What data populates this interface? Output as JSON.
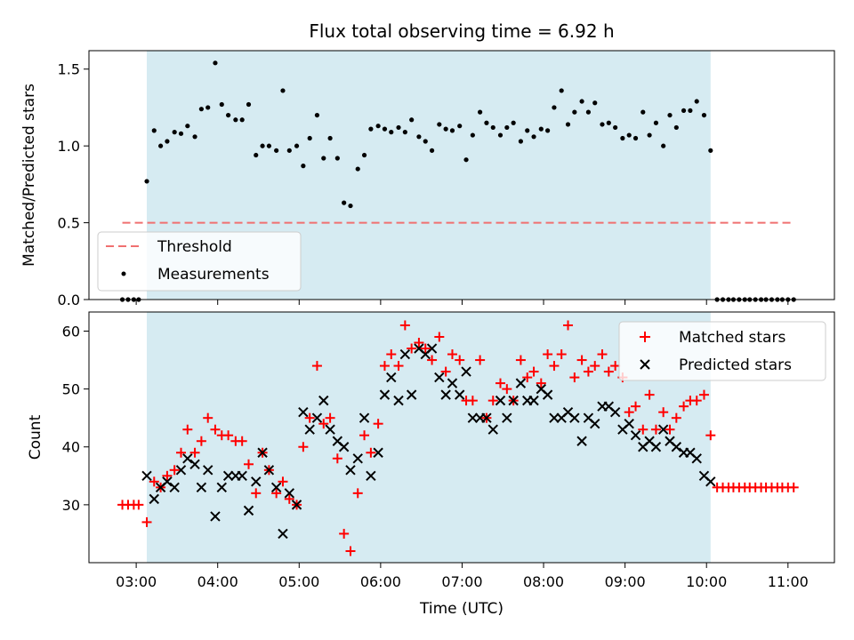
{
  "title": "Flux total observing time = 6.92 h",
  "colors": {
    "span": "#add8e6",
    "threshold": "#f07070",
    "matched": "#ff0000",
    "predicted": "#000000",
    "measure": "#000000"
  },
  "x_ticks": [
    "03:00",
    "04:00",
    "05:00",
    "06:00",
    "07:00",
    "08:00",
    "09:00",
    "10:00",
    "11:00"
  ],
  "xlabel": "Time (UTC)",
  "chart_data": [
    {
      "type": "scatter",
      "ylabel": "Matched/Predicted stars",
      "xlim": [
        2.42,
        11.57
      ],
      "ylim": [
        0,
        1.62
      ],
      "y_ticks": [
        "0.0",
        "0.5",
        "1.0",
        "1.5"
      ],
      "y_tick_values": [
        0,
        0.5,
        1.0,
        1.5
      ],
      "shaded_span": [
        3.13,
        10.05
      ],
      "threshold": {
        "name": "Threshold",
        "value": 0.5,
        "x_range": [
          2.83,
          11.07
        ]
      },
      "legend": {
        "position": "lower-left",
        "entries": [
          "Threshold",
          "Measurements"
        ]
      },
      "series": [
        {
          "name": "Measurements",
          "x": [
            2.83,
            2.9,
            2.97,
            3.03,
            3.13,
            3.22,
            3.3,
            3.38,
            3.47,
            3.55,
            3.63,
            3.72,
            3.8,
            3.88,
            3.97,
            4.05,
            4.13,
            4.22,
            4.3,
            4.38,
            4.47,
            4.55,
            4.63,
            4.72,
            4.8,
            4.88,
            4.97,
            5.05,
            5.13,
            5.22,
            5.3,
            5.38,
            5.47,
            5.55,
            5.63,
            5.72,
            5.8,
            5.88,
            5.97,
            6.05,
            6.13,
            6.22,
            6.3,
            6.38,
            6.47,
            6.55,
            6.63,
            6.72,
            6.8,
            6.88,
            6.97,
            7.05,
            7.13,
            7.22,
            7.3,
            7.38,
            7.47,
            7.55,
            7.63,
            7.72,
            7.8,
            7.88,
            7.97,
            8.05,
            8.13,
            8.22,
            8.3,
            8.38,
            8.47,
            8.55,
            8.63,
            8.72,
            8.8,
            8.88,
            8.97,
            9.05,
            9.13,
            9.22,
            9.3,
            9.38,
            9.47,
            9.55,
            9.63,
            9.72,
            9.8,
            9.88,
            9.97,
            10.05,
            10.13,
            10.2,
            10.27,
            10.33,
            10.4,
            10.47,
            10.53,
            10.6,
            10.67,
            10.73,
            10.8,
            10.87,
            10.93,
            11.0,
            11.07
          ],
          "y": [
            0,
            0,
            0,
            0,
            0.77,
            1.1,
            1.0,
            1.03,
            1.09,
            1.08,
            1.13,
            1.06,
            1.24,
            1.25,
            1.54,
            1.27,
            1.2,
            1.17,
            1.17,
            1.27,
            0.94,
            1.0,
            1.0,
            0.97,
            1.36,
            0.97,
            1.0,
            0.87,
            1.05,
            1.2,
            0.92,
            1.05,
            0.92,
            0.63,
            0.61,
            0.85,
            0.94,
            1.11,
            1.13,
            1.11,
            1.09,
            1.12,
            1.09,
            1.17,
            1.06,
            1.03,
            0.97,
            1.14,
            1.11,
            1.1,
            1.13,
            0.91,
            1.07,
            1.22,
            1.15,
            1.12,
            1.07,
            1.12,
            1.15,
            1.03,
            1.1,
            1.06,
            1.11,
            1.1,
            1.25,
            1.36,
            1.14,
            1.22,
            1.29,
            1.22,
            1.28,
            1.14,
            1.15,
            1.12,
            1.05,
            1.07,
            1.05,
            1.22,
            1.07,
            1.15,
            1.0,
            1.2,
            1.12,
            1.23,
            1.23,
            1.29,
            1.2,
            0.97,
            0,
            0,
            0,
            0,
            0,
            0,
            0,
            0,
            0,
            0,
            0,
            0,
            0,
            0,
            0
          ]
        }
      ]
    },
    {
      "type": "scatter",
      "ylabel": "Count",
      "xlim": [
        2.42,
        11.57
      ],
      "ylim": [
        20,
        63.3
      ],
      "y_ticks": [
        "30",
        "40",
        "50",
        "60"
      ],
      "y_tick_values": [
        30,
        40,
        50,
        60
      ],
      "shaded_span": [
        3.13,
        10.05
      ],
      "legend": {
        "position": "top-right",
        "entries": [
          "Matched stars",
          "Predicted stars"
        ]
      },
      "series": [
        {
          "name": "Matched stars",
          "marker": "plus",
          "x": [
            2.83,
            2.9,
            2.97,
            3.03,
            3.13,
            3.22,
            3.3,
            3.38,
            3.47,
            3.55,
            3.63,
            3.72,
            3.8,
            3.88,
            3.97,
            4.05,
            4.13,
            4.22,
            4.3,
            4.38,
            4.47,
            4.55,
            4.63,
            4.72,
            4.8,
            4.88,
            4.97,
            5.05,
            5.13,
            5.22,
            5.3,
            5.38,
            5.47,
            5.55,
            5.63,
            5.72,
            5.8,
            5.88,
            5.97,
            6.05,
            6.13,
            6.22,
            6.3,
            6.38,
            6.47,
            6.55,
            6.63,
            6.72,
            6.8,
            6.88,
            6.97,
            7.05,
            7.13,
            7.22,
            7.3,
            7.38,
            7.47,
            7.55,
            7.63,
            7.72,
            7.8,
            7.88,
            7.97,
            8.05,
            8.13,
            8.22,
            8.3,
            8.38,
            8.47,
            8.55,
            8.63,
            8.72,
            8.8,
            8.88,
            8.97,
            9.05,
            9.13,
            9.22,
            9.3,
            9.38,
            9.47,
            9.55,
            9.63,
            9.72,
            9.8,
            9.88,
            9.97,
            10.05,
            10.13,
            10.2,
            10.27,
            10.33,
            10.4,
            10.47,
            10.53,
            10.6,
            10.67,
            10.73,
            10.8,
            10.87,
            10.93,
            11.0,
            11.07
          ],
          "y": [
            30,
            30,
            30,
            30,
            27,
            34,
            33,
            35,
            36,
            39,
            43,
            39,
            41,
            45,
            43,
            42,
            42,
            41,
            41,
            37,
            32,
            39,
            36,
            32,
            34,
            31,
            30,
            40,
            45,
            54,
            44,
            45,
            38,
            25,
            22,
            32,
            42,
            39,
            44,
            54,
            56,
            54,
            61,
            57,
            58,
            57,
            55,
            59,
            53,
            56,
            55,
            48,
            48,
            55,
            45,
            48,
            51,
            50,
            48,
            55,
            52,
            53,
            51,
            56,
            54,
            56,
            61,
            52,
            55,
            53,
            54,
            56,
            53,
            54,
            52,
            46,
            47,
            43,
            49,
            43,
            46,
            43,
            45,
            47,
            48,
            48,
            49,
            42,
            33,
            33,
            33,
            33,
            33,
            33,
            33,
            33,
            33,
            33,
            33,
            33,
            33,
            33,
            33
          ]
        },
        {
          "name": "Predicted stars",
          "marker": "x",
          "x": [
            3.13,
            3.22,
            3.3,
            3.38,
            3.47,
            3.55,
            3.63,
            3.72,
            3.8,
            3.88,
            3.97,
            4.05,
            4.13,
            4.22,
            4.3,
            4.38,
            4.47,
            4.55,
            4.63,
            4.72,
            4.8,
            4.88,
            4.97,
            5.05,
            5.13,
            5.22,
            5.3,
            5.38,
            5.47,
            5.55,
            5.63,
            5.72,
            5.8,
            5.88,
            5.97,
            6.05,
            6.13,
            6.22,
            6.3,
            6.38,
            6.47,
            6.55,
            6.63,
            6.72,
            6.8,
            6.88,
            6.97,
            7.05,
            7.13,
            7.22,
            7.3,
            7.38,
            7.47,
            7.55,
            7.63,
            7.72,
            7.8,
            7.88,
            7.97,
            8.05,
            8.13,
            8.22,
            8.3,
            8.38,
            8.47,
            8.55,
            8.63,
            8.72,
            8.8,
            8.88,
            8.97,
            9.05,
            9.13,
            9.22,
            9.3,
            9.38,
            9.47,
            9.55,
            9.63,
            9.72,
            9.8,
            9.88,
            9.97,
            10.05
          ],
          "y": [
            35,
            31,
            33,
            34,
            33,
            36,
            38,
            37,
            33,
            36,
            28,
            33,
            35,
            35,
            35,
            29,
            34,
            39,
            36,
            33,
            25,
            32,
            30,
            46,
            43,
            45,
            48,
            43,
            41,
            40,
            36,
            38,
            45,
            35,
            39,
            49,
            52,
            48,
            56,
            49,
            57,
            56,
            57,
            52,
            49,
            51,
            49,
            53,
            45,
            45,
            45,
            43,
            48,
            45,
            48,
            51,
            48,
            48,
            50,
            49,
            45,
            45,
            46,
            45,
            41,
            45,
            44,
            47,
            47,
            46,
            43,
            44,
            42,
            40,
            41,
            40,
            43,
            41,
            40,
            39,
            39,
            38,
            35,
            34
          ]
        }
      ]
    }
  ]
}
